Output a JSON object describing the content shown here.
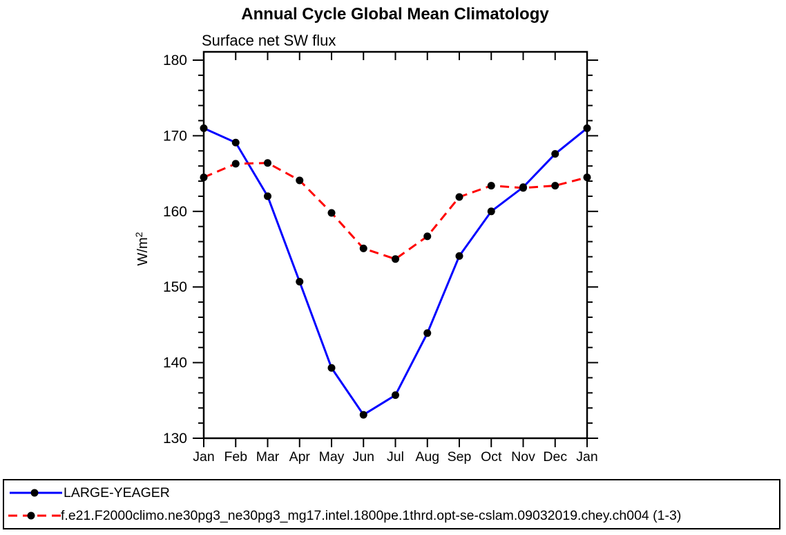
{
  "chart_data": {
    "type": "line",
    "title": "Annual Cycle Global Mean Climatology",
    "subtitle": "Surface net SW flux",
    "ylabel": "W/m²",
    "ylabel_base": "W/m",
    "ylabel_sup": "2",
    "categories": [
      "Jan",
      "Feb",
      "Mar",
      "Apr",
      "May",
      "Jun",
      "Jul",
      "Aug",
      "Sep",
      "Oct",
      "Nov",
      "Dec",
      "Jan"
    ],
    "ylim": [
      130,
      180
    ],
    "ytick_major_step": 10,
    "ytick_minor_step": 2,
    "grid": false,
    "legend_position": "bottom-outside",
    "axis_color": "#000000",
    "marker_color": "#000000",
    "series": [
      {
        "name": "LARGE-YEAGER",
        "color": "#0000ff",
        "line_style": "solid",
        "values": [
          171.0,
          169.1,
          162.0,
          150.7,
          139.3,
          133.1,
          135.7,
          143.9,
          154.1,
          160.0,
          163.2,
          167.6,
          171.0
        ]
      },
      {
        "name": "f.e21.F2000climo.ne30pg3_ne30pg3_mg17.intel.1800pe.1thrd.opt-se-cslam.09032019.chey.ch004 (1-3)",
        "color": "#ff0000",
        "line_style": "dashed",
        "values": [
          164.5,
          166.3,
          166.4,
          164.1,
          159.8,
          155.1,
          153.7,
          156.7,
          161.9,
          163.4,
          163.1,
          163.4,
          164.5
        ]
      }
    ]
  }
}
